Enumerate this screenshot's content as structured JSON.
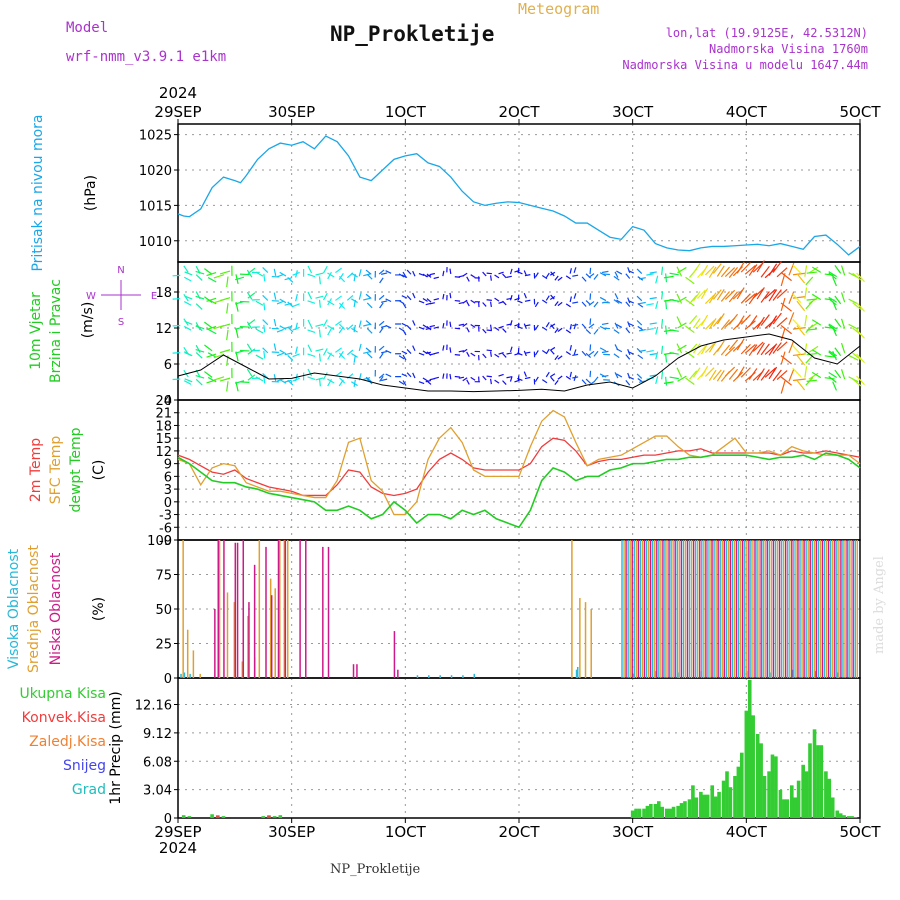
{
  "header": {
    "model_label": "Model",
    "model_name": "wrf-nmm_v3.9.1 e1km",
    "title": "NP_Prokletije",
    "chart_kind": "Meteogram",
    "lonlat": "lon,lat (19.9125E, 42.5312N)",
    "elevation": "Nadmorska Visina 1760m",
    "model_elevation": "Nadmorska Visina u modelu 1647.44m",
    "footer_title": "NP_Prokletije",
    "credit": "made by Angel"
  },
  "colors": {
    "pressure": "#1aa7e8",
    "temp2m": "#f03c3c",
    "sfc_temp": "#e0a030",
    "dewpoint": "#22cc22",
    "cloud_high": "#28b8d8",
    "cloud_mid": "#e0a030",
    "cloud_low": "#cc1a88",
    "rain": "#33cc33",
    "purple_label": "#aa33cc"
  },
  "chart_data": [
    {
      "type": "line",
      "id": "pressure",
      "ylabel": "Pritisak na nivou mora",
      "unit": "(hPa)",
      "ylim": [
        1007,
        1026.5
      ],
      "yticks": [
        1010,
        1015,
        1020,
        1025
      ],
      "x_axis_top": {
        "year": "2024",
        "ticks": [
          "29SEP",
          "30SEP",
          "1OCT",
          "2OCT",
          "3OCT",
          "4OCT",
          "5OCT"
        ]
      },
      "series": [
        {
          "x": [
            0,
            0.05,
            0.1,
            0.2,
            0.3,
            0.4,
            0.5,
            0.55,
            0.6,
            0.7,
            0.8,
            0.9,
            1.0,
            1.1,
            1.2,
            1.3,
            1.4,
            1.5,
            1.6,
            1.7,
            1.8,
            1.9,
            2.0,
            2.1,
            2.2,
            2.3,
            2.4,
            2.5,
            2.6,
            2.7,
            2.8,
            2.9,
            3.0,
            3.1,
            3.2,
            3.3,
            3.4,
            3.5,
            3.6,
            3.7,
            3.8,
            3.9,
            4.0,
            4.1,
            4.2,
            4.3,
            4.4,
            4.5,
            4.6,
            4.7,
            4.8,
            4.9,
            5.0,
            5.1,
            5.2,
            5.3,
            5.4,
            5.5,
            5.6,
            5.7,
            5.8,
            5.9,
            6.0
          ],
          "values": [
            1013.8,
            1013.5,
            1013.4,
            1014.5,
            1017.5,
            1019,
            1018.5,
            1018.2,
            1019.2,
            1021.5,
            1023,
            1023.8,
            1023.5,
            1024,
            1023,
            1024.8,
            1024,
            1022,
            1019,
            1018.5,
            1020,
            1021.5,
            1022,
            1022.3,
            1021,
            1020.5,
            1019,
            1017,
            1015.5,
            1015,
            1015.3,
            1015.5,
            1015.4,
            1015,
            1014.6,
            1014.2,
            1013.5,
            1012.5,
            1012.5,
            1011.5,
            1010.5,
            1010.2,
            1012,
            1011.5,
            1009.6,
            1009,
            1008.7,
            1008.6,
            1009,
            1009.2,
            1009.2,
            1009.3,
            1009.4,
            1009.5,
            1009.3,
            1009.6,
            1009.2,
            1008.8,
            1010.6,
            1010.8,
            1009.5,
            1008,
            1009.2
          ]
        }
      ]
    },
    {
      "type": "line",
      "id": "wind",
      "ylabel": "10m Vjetar",
      "ylabel2": "Brzina i Pravac",
      "unit": "(m/s)",
      "ylim": [
        0,
        23
      ],
      "yticks": [
        0,
        6,
        12,
        18
      ],
      "compass": {
        "n": "N",
        "w": "W",
        "e": "E",
        "s": "S"
      },
      "series": [
        {
          "name": "speed",
          "x": [
            0,
            0.2,
            0.4,
            0.6,
            0.7,
            0.8,
            1.0,
            1.2,
            1.4,
            1.6,
            1.8,
            2.0,
            2.2,
            2.4,
            2.6,
            2.8,
            3.0,
            3.2,
            3.4,
            3.6,
            3.8,
            4.0,
            4.2,
            4.4,
            4.6,
            4.8,
            5.0,
            5.2,
            5.4,
            5.6,
            5.8,
            6.0
          ],
          "values": [
            4,
            5,
            7.5,
            5.5,
            4.5,
            3.5,
            3.6,
            4.5,
            4,
            3.5,
            2.5,
            2,
            1.5,
            1.5,
            1.4,
            1.5,
            1.6,
            1.8,
            1.5,
            2.5,
            3,
            2,
            4,
            7,
            9,
            10,
            10.5,
            11,
            10,
            7,
            6,
            9
          ]
        }
      ]
    },
    {
      "type": "line",
      "id": "temperature",
      "ylabels": [
        "2m Temp",
        "SFC Temp",
        "dewpt Temp"
      ],
      "unit": "(C)",
      "ylim": [
        -9,
        24
      ],
      "yticks": [
        -9,
        -6,
        -3,
        0,
        3,
        6,
        9,
        12,
        15,
        18,
        21,
        24
      ],
      "series": [
        {
          "name": "2m Temp",
          "x": [
            0,
            0.1,
            0.2,
            0.3,
            0.4,
            0.5,
            0.6,
            0.7,
            0.8,
            0.9,
            1.0,
            1.1,
            1.2,
            1.3,
            1.4,
            1.5,
            1.6,
            1.7,
            1.8,
            1.9,
            2.0,
            2.1,
            2.2,
            2.3,
            2.4,
            2.5,
            2.6,
            2.7,
            2.8,
            2.9,
            3.0,
            3.1,
            3.2,
            3.3,
            3.4,
            3.5,
            3.6,
            3.7,
            3.8,
            3.9,
            4.0,
            4.1,
            4.2,
            4.3,
            4.4,
            4.5,
            4.6,
            4.7,
            4.8,
            4.9,
            5.0,
            5.1,
            5.2,
            5.3,
            5.4,
            5.5,
            5.6,
            5.7,
            5.8,
            5.9,
            6.0
          ],
          "values": [
            11,
            10,
            8.5,
            7,
            6.5,
            7.5,
            5.5,
            4.5,
            3.5,
            3,
            2.5,
            1.5,
            1.5,
            1.5,
            4,
            7.5,
            7,
            3.5,
            2,
            1.5,
            2,
            3,
            7,
            10,
            11.5,
            10,
            8,
            7.5,
            7.5,
            7.5,
            7.5,
            9,
            13,
            15,
            14.5,
            12,
            8.5,
            9.5,
            10,
            10,
            10.5,
            11,
            11,
            11.5,
            12,
            12,
            12.5,
            11.5,
            11.5,
            11.5,
            11.5,
            11.5,
            11.5,
            11,
            12,
            11.5,
            11.5,
            12,
            11.5,
            11,
            10.5
          ]
        },
        {
          "name": "SFC Temp",
          "x": [
            0,
            0.1,
            0.2,
            0.3,
            0.4,
            0.5,
            0.6,
            0.7,
            0.8,
            0.9,
            1.0,
            1.1,
            1.2,
            1.3,
            1.4,
            1.5,
            1.6,
            1.7,
            1.8,
            1.9,
            2.0,
            2.1,
            2.2,
            2.3,
            2.4,
            2.5,
            2.6,
            2.7,
            2.8,
            2.9,
            3.0,
            3.1,
            3.2,
            3.3,
            3.4,
            3.5,
            3.6,
            3.7,
            3.8,
            3.9,
            4.0,
            4.1,
            4.2,
            4.3,
            4.4,
            4.5,
            4.6,
            4.7,
            4.8,
            4.9,
            5.0,
            5.1,
            5.2,
            5.3,
            5.4,
            5.5,
            5.6,
            5.7,
            5.8,
            5.9,
            6.0
          ],
          "values": [
            10,
            9,
            4,
            8,
            9,
            8.5,
            4.5,
            3.5,
            2.5,
            2.5,
            2,
            1.5,
            1,
            1,
            5,
            14,
            15,
            5,
            2.5,
            -3,
            -3,
            0,
            10,
            15,
            17.5,
            14,
            7.5,
            6,
            6,
            6,
            6,
            13,
            19,
            21.5,
            20,
            14,
            8.5,
            10,
            10.5,
            11,
            12.5,
            14,
            15.5,
            15.5,
            13,
            11,
            10.5,
            11,
            13,
            15,
            11.5,
            11.5,
            12,
            11,
            13,
            12,
            11.5,
            11,
            11,
            11,
            9
          ]
        },
        {
          "name": "dewpt Temp",
          "x": [
            0,
            0.1,
            0.2,
            0.3,
            0.4,
            0.5,
            0.6,
            0.7,
            0.8,
            0.9,
            1.0,
            1.1,
            1.2,
            1.3,
            1.4,
            1.5,
            1.6,
            1.7,
            1.8,
            1.9,
            2.0,
            2.1,
            2.2,
            2.3,
            2.4,
            2.5,
            2.6,
            2.7,
            2.8,
            2.9,
            3.0,
            3.1,
            3.2,
            3.3,
            3.4,
            3.5,
            3.6,
            3.7,
            3.8,
            3.9,
            4.0,
            4.1,
            4.2,
            4.3,
            4.4,
            4.5,
            4.6,
            4.7,
            4.8,
            4.9,
            5.0,
            5.1,
            5.2,
            5.3,
            5.4,
            5.5,
            5.6,
            5.7,
            5.8,
            5.9,
            6.0
          ],
          "values": [
            10.5,
            9,
            7,
            5,
            4.5,
            4.5,
            3.5,
            3,
            2,
            1.5,
            1,
            0.5,
            0,
            -2,
            -2,
            -1,
            -2,
            -4,
            -3,
            0,
            -2,
            -5,
            -3,
            -3,
            -4,
            -2,
            -3,
            -2,
            -4,
            -5,
            -6,
            -2,
            5,
            8,
            7,
            5,
            6,
            6,
            7.5,
            8,
            9,
            9,
            9.5,
            10,
            10,
            10.5,
            10.5,
            11,
            11,
            11,
            11,
            10.5,
            10,
            10.5,
            10.5,
            11,
            10,
            11.5,
            11,
            10,
            8
          ]
        }
      ]
    },
    {
      "type": "bar",
      "id": "clouds",
      "ylabels": [
        "Visoka Oblacnost",
        "Srednja Oblacnost",
        "Niska Oblacnost"
      ],
      "unit": "(%)",
      "ylim": [
        0,
        100
      ],
      "yticks": [
        0,
        25,
        50,
        75,
        100
      ],
      "series": [
        {
          "name": "Visoka Oblacnost",
          "x": [
            0.02,
            0.05,
            0.1,
            2.1,
            2.2,
            2.3,
            2.4,
            2.5,
            2.6,
            3.5,
            3.51,
            4.0,
            4.2,
            4.4,
            4.6,
            4.8,
            5.0,
            5.2,
            5.4,
            5.6,
            5.8
          ],
          "values": [
            3,
            4,
            3,
            2,
            2,
            2,
            2,
            2,
            3,
            6,
            8,
            3,
            5,
            4,
            5,
            6,
            5,
            4,
            6,
            5,
            4
          ]
        },
        {
          "name": "Srednja Oblacnost",
          "x": [
            0.03,
            0.07,
            0.12,
            0.18,
            0.35,
            0.42,
            0.48,
            0.55,
            0.6,
            0.66,
            0.7,
            0.8,
            0.84,
            0.88,
            0.92,
            0.95,
            3.45,
            3.52,
            3.57,
            3.62
          ],
          "values": [
            100,
            35,
            20,
            3,
            100,
            62,
            55,
            12,
            45,
            15,
            100,
            72,
            65,
            100,
            100,
            100,
            100,
            58,
            55,
            50
          ]
        },
        {
          "name": "Niska Oblacnost",
          "x": [
            0.3,
            0.33,
            0.38,
            0.48,
            0.5,
            0.55,
            0.6,
            0.65,
            0.75,
            0.8,
            0.86,
            0.92,
            1.05,
            1.1,
            1.25,
            1.3,
            1.52,
            1.55,
            1.88,
            1.91
          ],
          "values": [
            50,
            100,
            100,
            98,
            98,
            100,
            55,
            82,
            95,
            60,
            100,
            100,
            100,
            100,
            95,
            95,
            10,
            10,
            34,
            6
          ]
        }
      ]
    },
    {
      "type": "bar",
      "id": "precip",
      "ylabel": "1hr Precip",
      "unit": "(mm)",
      "legend": [
        "Ukupna Kisa",
        "Konvek.Kisa",
        "Zaledj.Kisa",
        "Snijeg",
        "Grad"
      ],
      "ylim": [
        0,
        15
      ],
      "yticks": [
        0,
        3.04,
        6.08,
        9.12,
        12.16
      ],
      "x_axis_bottom": {
        "year": "2024",
        "ticks": [
          "29SEP",
          "30SEP",
          "1OCT",
          "2OCT",
          "3OCT",
          "4OCT",
          "5OCT"
        ]
      },
      "series": [
        {
          "name": "Ukupna Kisa",
          "x": [
            0.05,
            0.1,
            0.3,
            0.35,
            0.4,
            0.75,
            0.8,
            0.85,
            0.9,
            4.0,
            4.03,
            4.06,
            4.1,
            4.13,
            4.16,
            4.2,
            4.23,
            4.26,
            4.3,
            4.33,
            4.36,
            4.4,
            4.43,
            4.46,
            4.5,
            4.53,
            4.56,
            4.6,
            4.63,
            4.66,
            4.7,
            4.73,
            4.76,
            4.8,
            4.83,
            4.86,
            4.9,
            4.93,
            4.96,
            5.0,
            5.03,
            5.06,
            5.1,
            5.13,
            5.16,
            5.2,
            5.23,
            5.26,
            5.3,
            5.33,
            5.36,
            5.4,
            5.43,
            5.46,
            5.5,
            5.53,
            5.56,
            5.6,
            5.63,
            5.66,
            5.7,
            5.73,
            5.76,
            5.8,
            5.83,
            5.86,
            5.9,
            5.93,
            5.96
          ],
          "values": [
            0.3,
            0.2,
            0.4,
            0.3,
            0.2,
            0.2,
            0.3,
            0.2,
            0.3,
            0.8,
            1.0,
            1.0,
            1.0,
            1.3,
            1.5,
            1.5,
            1.8,
            1.2,
            1.0,
            1.0,
            1.2,
            1.3,
            1.6,
            1.8,
            2.0,
            3.5,
            2.2,
            2.8,
            2.5,
            2.5,
            3.5,
            2.3,
            2.8,
            4.0,
            5.0,
            3.3,
            4.5,
            5.5,
            7.0,
            11.5,
            14.8,
            11.0,
            9.0,
            8.0,
            4.5,
            5.0,
            6.8,
            6.6,
            3.0,
            2.0,
            2.0,
            3.5,
            2.2,
            4.0,
            5.7,
            5.0,
            8.0,
            9.5,
            7.8,
            7.8,
            5.0,
            4.2,
            2.2,
            0.8,
            0.5,
            0.3,
            0.2,
            0.2,
            0.1
          ]
        },
        {
          "name": "Konvek.Kisa",
          "x": [
            0.1,
            0.35,
            0.8,
            0.85
          ],
          "values": [
            0.1,
            0.2,
            0.2,
            0.1
          ]
        }
      ]
    }
  ]
}
